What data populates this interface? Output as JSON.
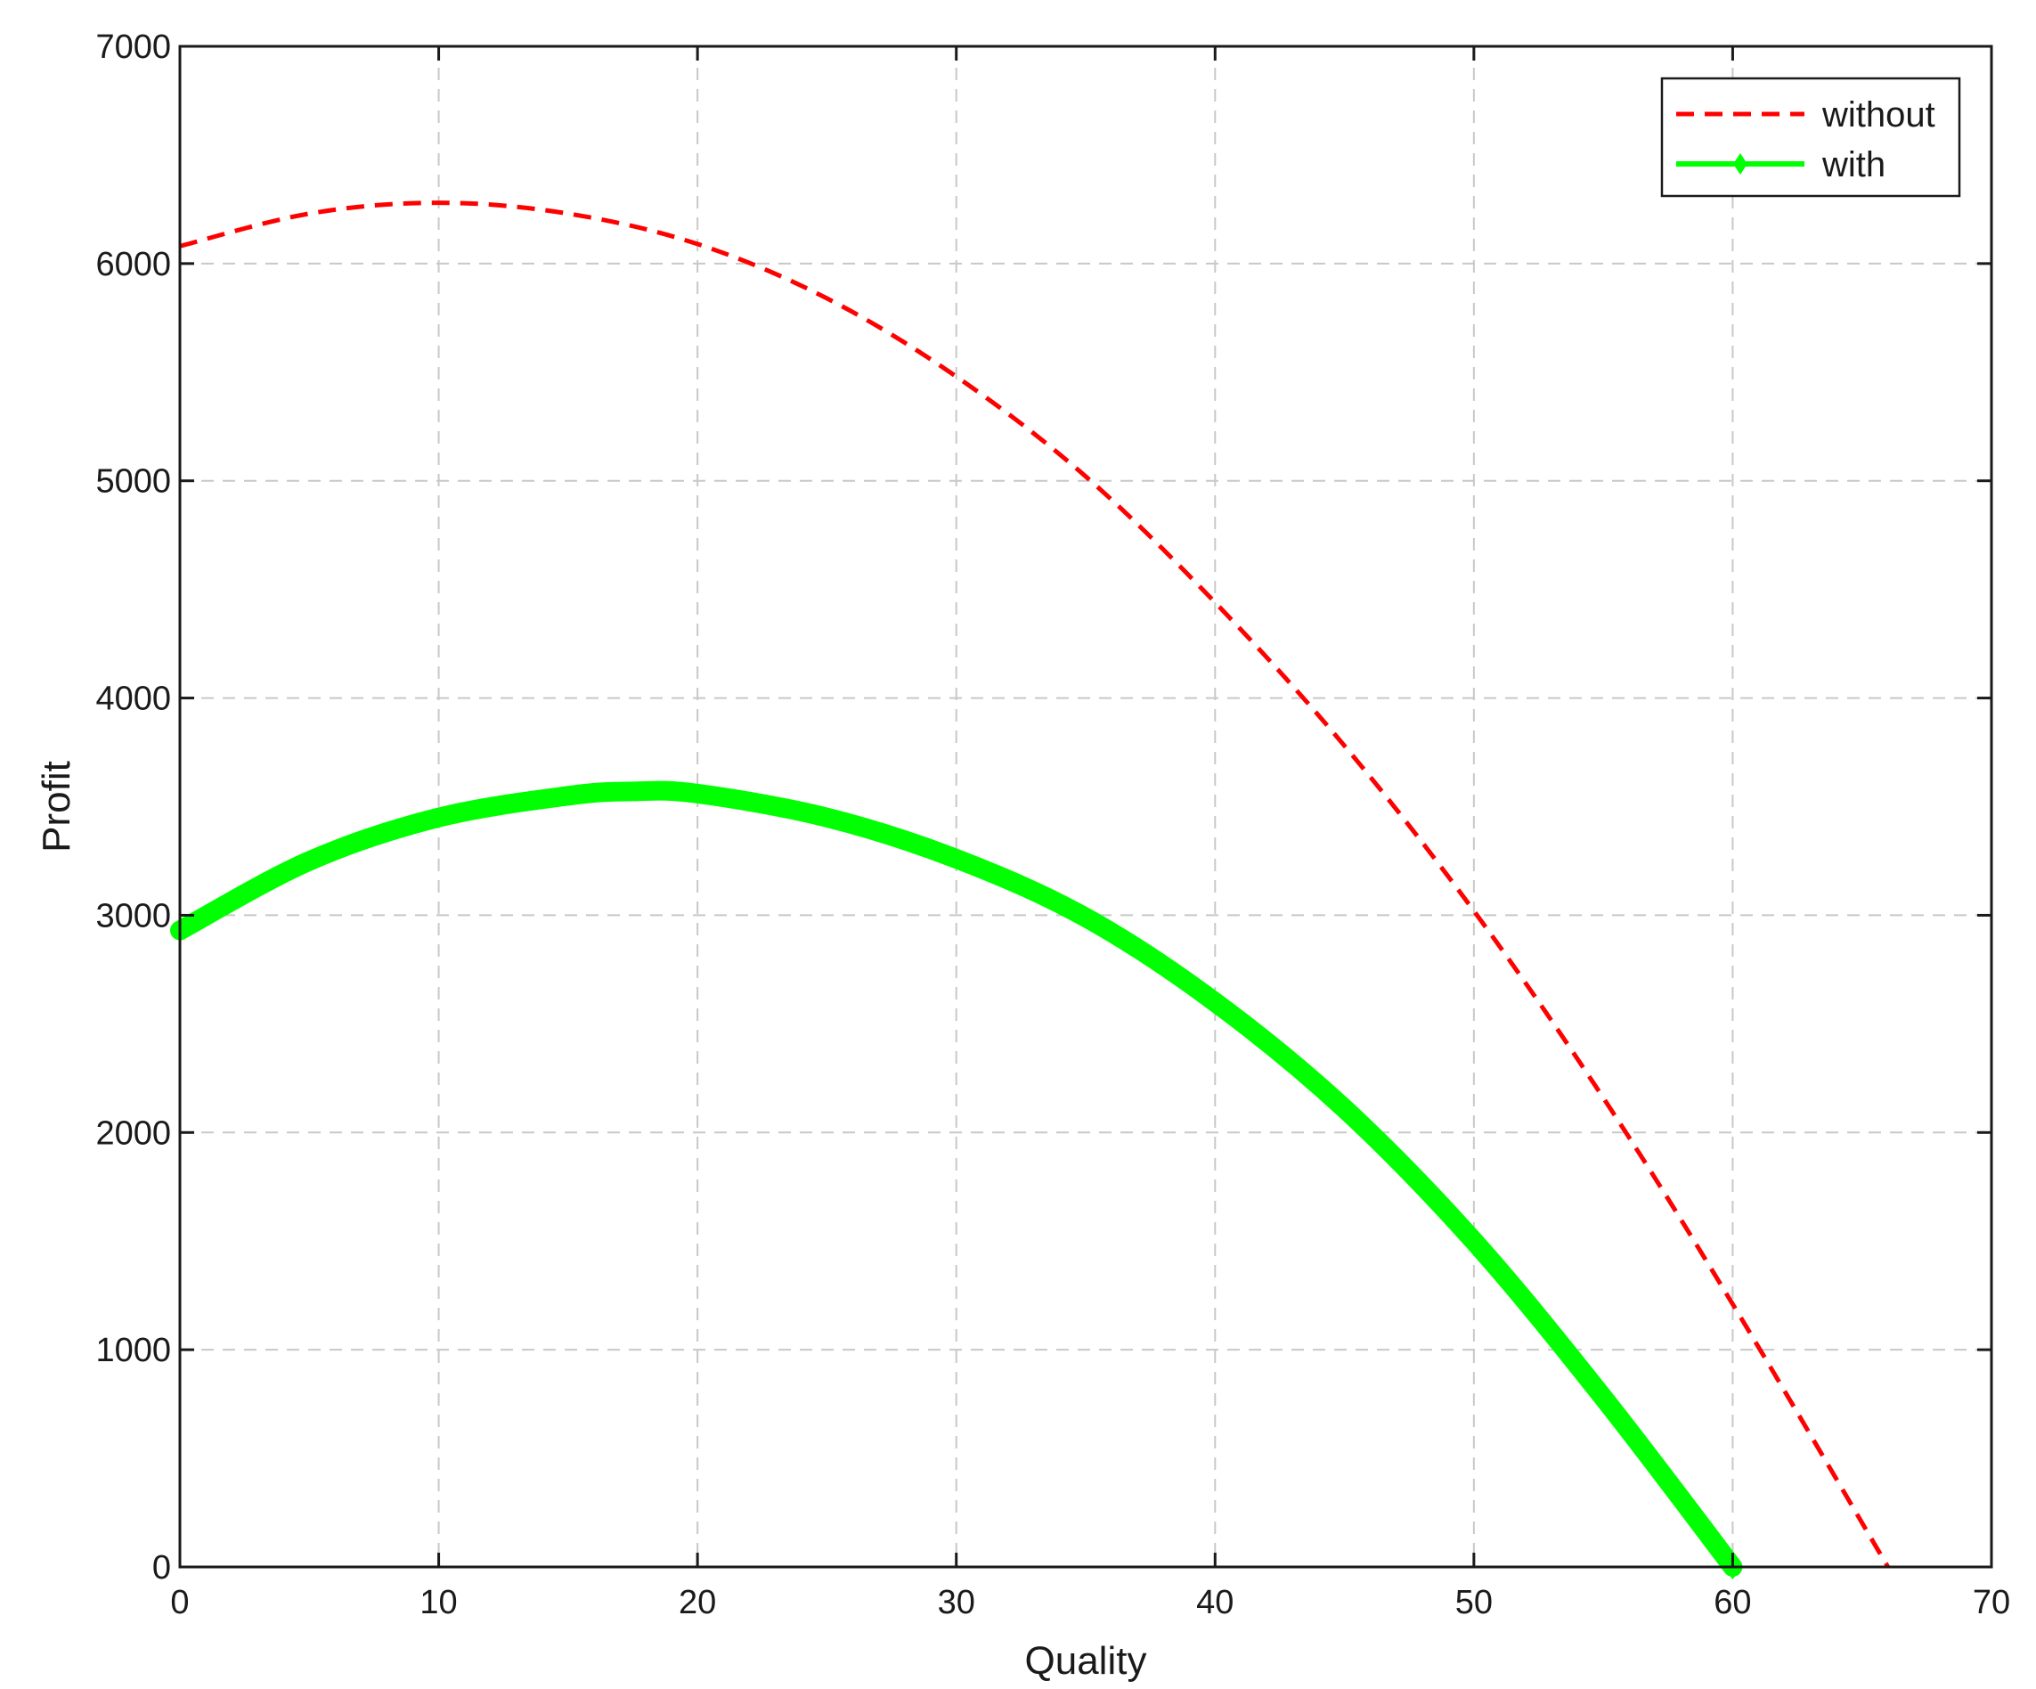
{
  "chart_data": {
    "type": "line",
    "title": "",
    "xlabel": "Quality",
    "ylabel": "Profit",
    "xlim": [
      0,
      70
    ],
    "ylim": [
      0,
      7000
    ],
    "xticks": [
      0,
      10,
      20,
      30,
      40,
      50,
      60,
      70
    ],
    "yticks": [
      0,
      1000,
      2000,
      3000,
      4000,
      5000,
      6000,
      7000
    ],
    "xtick_labels": [
      "0",
      "10",
      "20",
      "30",
      "40",
      "50",
      "60",
      "70"
    ],
    "ytick_labels": [
      "0",
      "1000",
      "2000",
      "3000",
      "4000",
      "5000",
      "6000",
      "7000"
    ],
    "grid": true,
    "legend_position": "top-right",
    "series": [
      {
        "name": "without",
        "color": "#ff0000",
        "style": "dashed",
        "x": [
          0,
          5,
          10,
          15,
          20,
          25,
          30,
          35,
          40,
          45,
          50,
          55,
          60,
          66
        ],
        "y": [
          6080,
          6230,
          6280,
          6230,
          6090,
          5840,
          5480,
          5020,
          4440,
          3780,
          3020,
          2160,
          1210,
          0
        ]
      },
      {
        "name": "with",
        "color": "#00ff00",
        "style": "solid-thick",
        "marker": "diamond",
        "x": [
          0,
          5,
          10,
          15,
          17.5,
          20,
          25,
          30,
          35,
          40,
          45,
          50,
          55,
          60
        ],
        "y": [
          2930,
          3250,
          3450,
          3550,
          3570,
          3560,
          3450,
          3260,
          2990,
          2600,
          2110,
          1500,
          780,
          0
        ]
      }
    ]
  }
}
